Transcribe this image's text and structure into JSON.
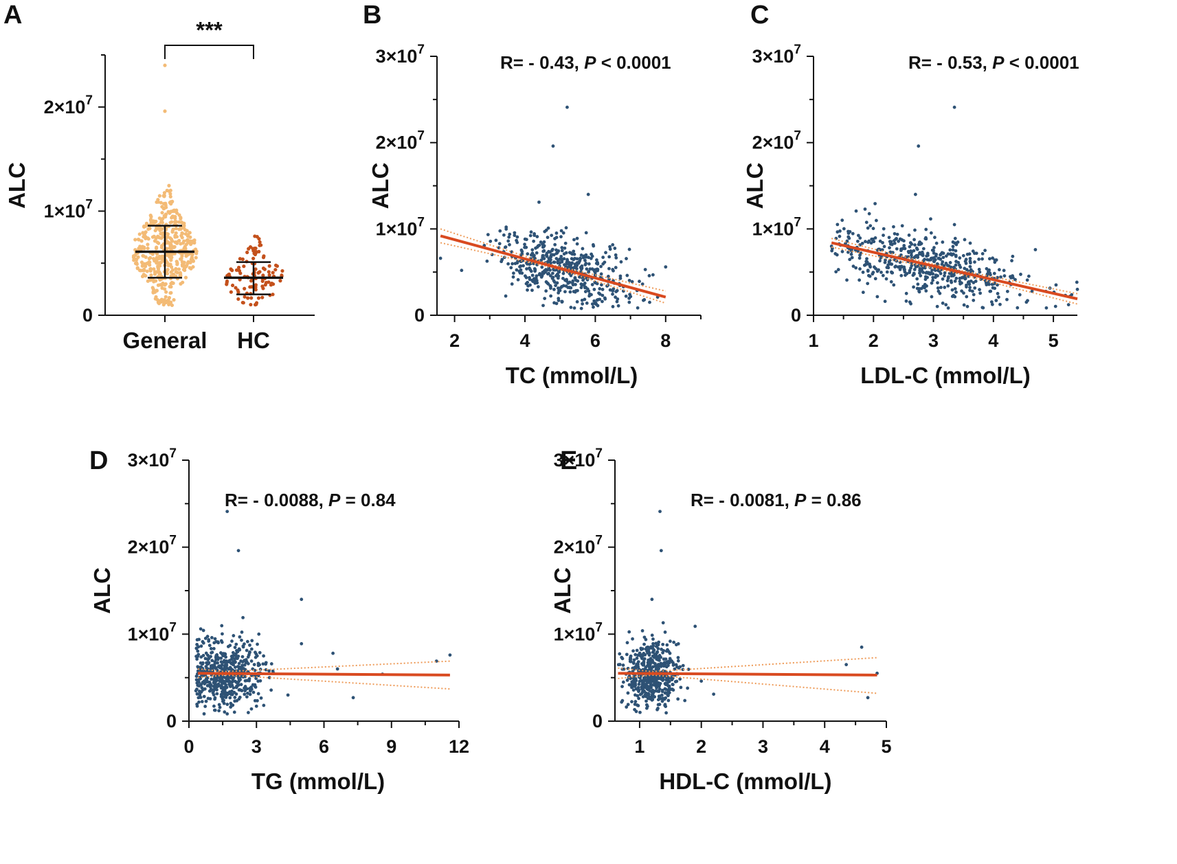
{
  "figure": {
    "colors": {
      "general": "#F3BB76",
      "hc": "#C4511C",
      "point": "#2E5275",
      "fit": "#D94A20",
      "ci": "#EE9A57",
      "axis": "#111111"
    }
  },
  "chart_data": [
    {
      "panel": "A",
      "type": "scatter",
      "subtype": "dot-plot",
      "categories": [
        "General",
        "HC"
      ],
      "ylabel": "ALC",
      "ylim": [
        0,
        25000000
      ],
      "yticks": [
        0,
        10000000,
        20000000
      ],
      "yticklabels": [
        {
          "base": "0",
          "exp": ""
        },
        {
          "base": "1×10",
          "exp": "7"
        },
        {
          "base": "2×10",
          "exp": "7"
        }
      ],
      "groups": [
        {
          "name": "General",
          "mean": 6100000,
          "sd_low": 3600000,
          "sd_high": 8600000,
          "n": 480,
          "color_key": "general"
        },
        {
          "name": "HC",
          "mean": 3600000,
          "sd_low": 2000000,
          "sd_high": 5100000,
          "n": 110,
          "color_key": "hc"
        }
      ],
      "outliers": [
        {
          "group": "General",
          "y": 24000000
        },
        {
          "group": "General",
          "y": 19600000
        }
      ],
      "significance": "***"
    },
    {
      "panel": "B",
      "type": "scatter",
      "xlabel": "TC (mmol/L)",
      "ylabel": "ALC",
      "xlim": [
        1.5,
        9.0
      ],
      "xticks": [
        2,
        4,
        6,
        8
      ],
      "ylim": [
        0,
        30000000
      ],
      "yticks": [
        0,
        10000000,
        20000000,
        30000000
      ],
      "yticklabels": [
        {
          "base": "0",
          "exp": ""
        },
        {
          "base": "1×10",
          "exp": "7"
        },
        {
          "base": "2×10",
          "exp": "7"
        },
        {
          "base": "3×10",
          "exp": "7"
        }
      ],
      "annotation": {
        "r": "R= - 0.43, ",
        "p_sym": "P",
        "p_val": " < 0.0001"
      },
      "fit": {
        "x": [
          1.6,
          8.0
        ],
        "y": [
          9200000,
          2100000
        ]
      },
      "ci_band": {
        "x": [
          1.6,
          4.8,
          8.0
        ],
        "lower": [
          8400000,
          5500000,
          1400000
        ],
        "upper": [
          10000000,
          5800000,
          2800000
        ]
      },
      "cloud": {
        "n": 520,
        "x_mean": 5.0,
        "x_sd": 0.95,
        "x_min": 2.5,
        "x_max": 8.0,
        "y_sd": 1900000,
        "y_min": 700000,
        "y_max": 13500000
      },
      "extra_points": [
        [
          5.2,
          24100000
        ],
        [
          4.8,
          19600000
        ],
        [
          5.8,
          14000000
        ],
        [
          4.4,
          13100000
        ],
        [
          1.6,
          6600000
        ],
        [
          2.2,
          5200000
        ],
        [
          8.0,
          5600000
        ],
        [
          6.8,
          2800000
        ],
        [
          6.5,
          1000000
        ]
      ]
    },
    {
      "panel": "C",
      "type": "scatter",
      "xlabel": "LDL-C (mmol/L)",
      "ylabel": "ALC",
      "xlim": [
        1.0,
        5.4
      ],
      "xticks": [
        1,
        2,
        3,
        4,
        5
      ],
      "ylim": [
        0,
        30000000
      ],
      "yticks": [
        0,
        10000000,
        20000000,
        30000000
      ],
      "yticklabels": [
        {
          "base": "0",
          "exp": ""
        },
        {
          "base": "1×10",
          "exp": "7"
        },
        {
          "base": "2×10",
          "exp": "7"
        },
        {
          "base": "3×10",
          "exp": "7"
        }
      ],
      "annotation": {
        "r": "R= - 0.53, ",
        "p_sym": "P",
        "p_val": " < 0.0001"
      },
      "fit": {
        "x": [
          1.3,
          5.4
        ],
        "y": [
          8400000,
          1900000
        ]
      },
      "ci_band": {
        "x": [
          1.3,
          3.3,
          5.4
        ],
        "lower": [
          7900000,
          5000000,
          1300000
        ],
        "upper": [
          8900000,
          5400000,
          2500000
        ]
      },
      "cloud": {
        "n": 560,
        "x_mean": 2.9,
        "x_sd": 0.85,
        "x_min": 1.3,
        "x_max": 5.4,
        "y_sd": 1800000,
        "y_min": 800000,
        "y_max": 13000000
      },
      "extra_points": [
        [
          3.35,
          24100000
        ],
        [
          2.75,
          19600000
        ],
        [
          2.7,
          14000000
        ],
        [
          3.35,
          10500000
        ],
        [
          4.7,
          7600000
        ],
        [
          1.3,
          8000000
        ],
        [
          5.4,
          3000000
        ],
        [
          5.2,
          2300000
        ]
      ]
    },
    {
      "panel": "D",
      "type": "scatter",
      "xlabel": "TG (mmol/L)",
      "ylabel": "ALC",
      "xlim": [
        0,
        12
      ],
      "xticks": [
        0,
        3,
        6,
        9,
        12
      ],
      "ylim": [
        0,
        30000000
      ],
      "yticks": [
        0,
        10000000,
        20000000,
        30000000
      ],
      "yticklabels": [
        {
          "base": "0",
          "exp": ""
        },
        {
          "base": "1×10",
          "exp": "7"
        },
        {
          "base": "2×10",
          "exp": "7"
        },
        {
          "base": "3×10",
          "exp": "7"
        }
      ],
      "annotation": {
        "r": "R= - 0.0088, ",
        "p_sym": "P",
        "p_val": " = 0.84"
      },
      "fit": {
        "x": [
          0.4,
          11.6
        ],
        "y": [
          5500000,
          5300000
        ]
      },
      "ci_band": {
        "x": [
          0.4,
          1.6,
          11.6
        ],
        "lower": [
          5000000,
          5300000,
          3700000
        ],
        "upper": [
          6000000,
          5700000,
          6900000
        ]
      },
      "cloud": {
        "n": 540,
        "x_mean": 1.6,
        "x_sd": 0.85,
        "x_min": 0.3,
        "x_max": 5.0,
        "y_sd": 2000000,
        "y_min": 800000,
        "y_max": 13000000
      },
      "extra_points": [
        [
          1.7,
          24100000
        ],
        [
          2.2,
          19600000
        ],
        [
          5.0,
          14000000
        ],
        [
          11.6,
          7600000
        ],
        [
          11.0,
          6900000
        ],
        [
          8.6,
          5400000
        ],
        [
          7.3,
          2700000
        ],
        [
          6.6,
          6000000
        ],
        [
          6.4,
          7800000
        ],
        [
          5.0,
          8900000
        ],
        [
          4.4,
          3000000
        ],
        [
          2.4,
          11900000
        ]
      ]
    },
    {
      "panel": "E",
      "type": "scatter",
      "xlabel": "HDL-C (mmol/L)",
      "ylabel": "ALC",
      "xlim": [
        0.6,
        5.0
      ],
      "xticks": [
        1,
        2,
        3,
        4,
        5
      ],
      "ylim": [
        0,
        30000000
      ],
      "yticks": [
        0,
        10000000,
        20000000,
        30000000
      ],
      "yticklabels": [
        {
          "base": "0",
          "exp": ""
        },
        {
          "base": "1×10",
          "exp": "7"
        },
        {
          "base": "2×10",
          "exp": "7"
        },
        {
          "base": "3×10",
          "exp": "7"
        }
      ],
      "annotation": {
        "r": "R= - 0.0081, ",
        "p_sym": "P",
        "p_val": " = 0.86"
      },
      "fit": {
        "x": [
          0.65,
          4.85
        ],
        "y": [
          5500000,
          5300000
        ]
      },
      "ci_band": {
        "x": [
          0.65,
          1.2,
          4.85
        ],
        "lower": [
          4900000,
          5300000,
          3200000
        ],
        "upper": [
          6100000,
          5700000,
          7300000
        ]
      },
      "cloud": {
        "n": 520,
        "x_mean": 1.2,
        "x_sd": 0.22,
        "x_min": 0.65,
        "x_max": 2.0,
        "y_sd": 2000000,
        "y_min": 900000,
        "y_max": 13000000
      },
      "extra_points": [
        [
          1.33,
          24100000
        ],
        [
          1.35,
          19600000
        ],
        [
          1.2,
          14000000
        ],
        [
          4.6,
          8500000
        ],
        [
          4.35,
          6500000
        ],
        [
          4.85,
          5500000
        ],
        [
          4.7,
          2700000
        ],
        [
          2.2,
          3100000
        ],
        [
          2.0,
          4600000
        ],
        [
          1.9,
          10900000
        ]
      ]
    }
  ]
}
